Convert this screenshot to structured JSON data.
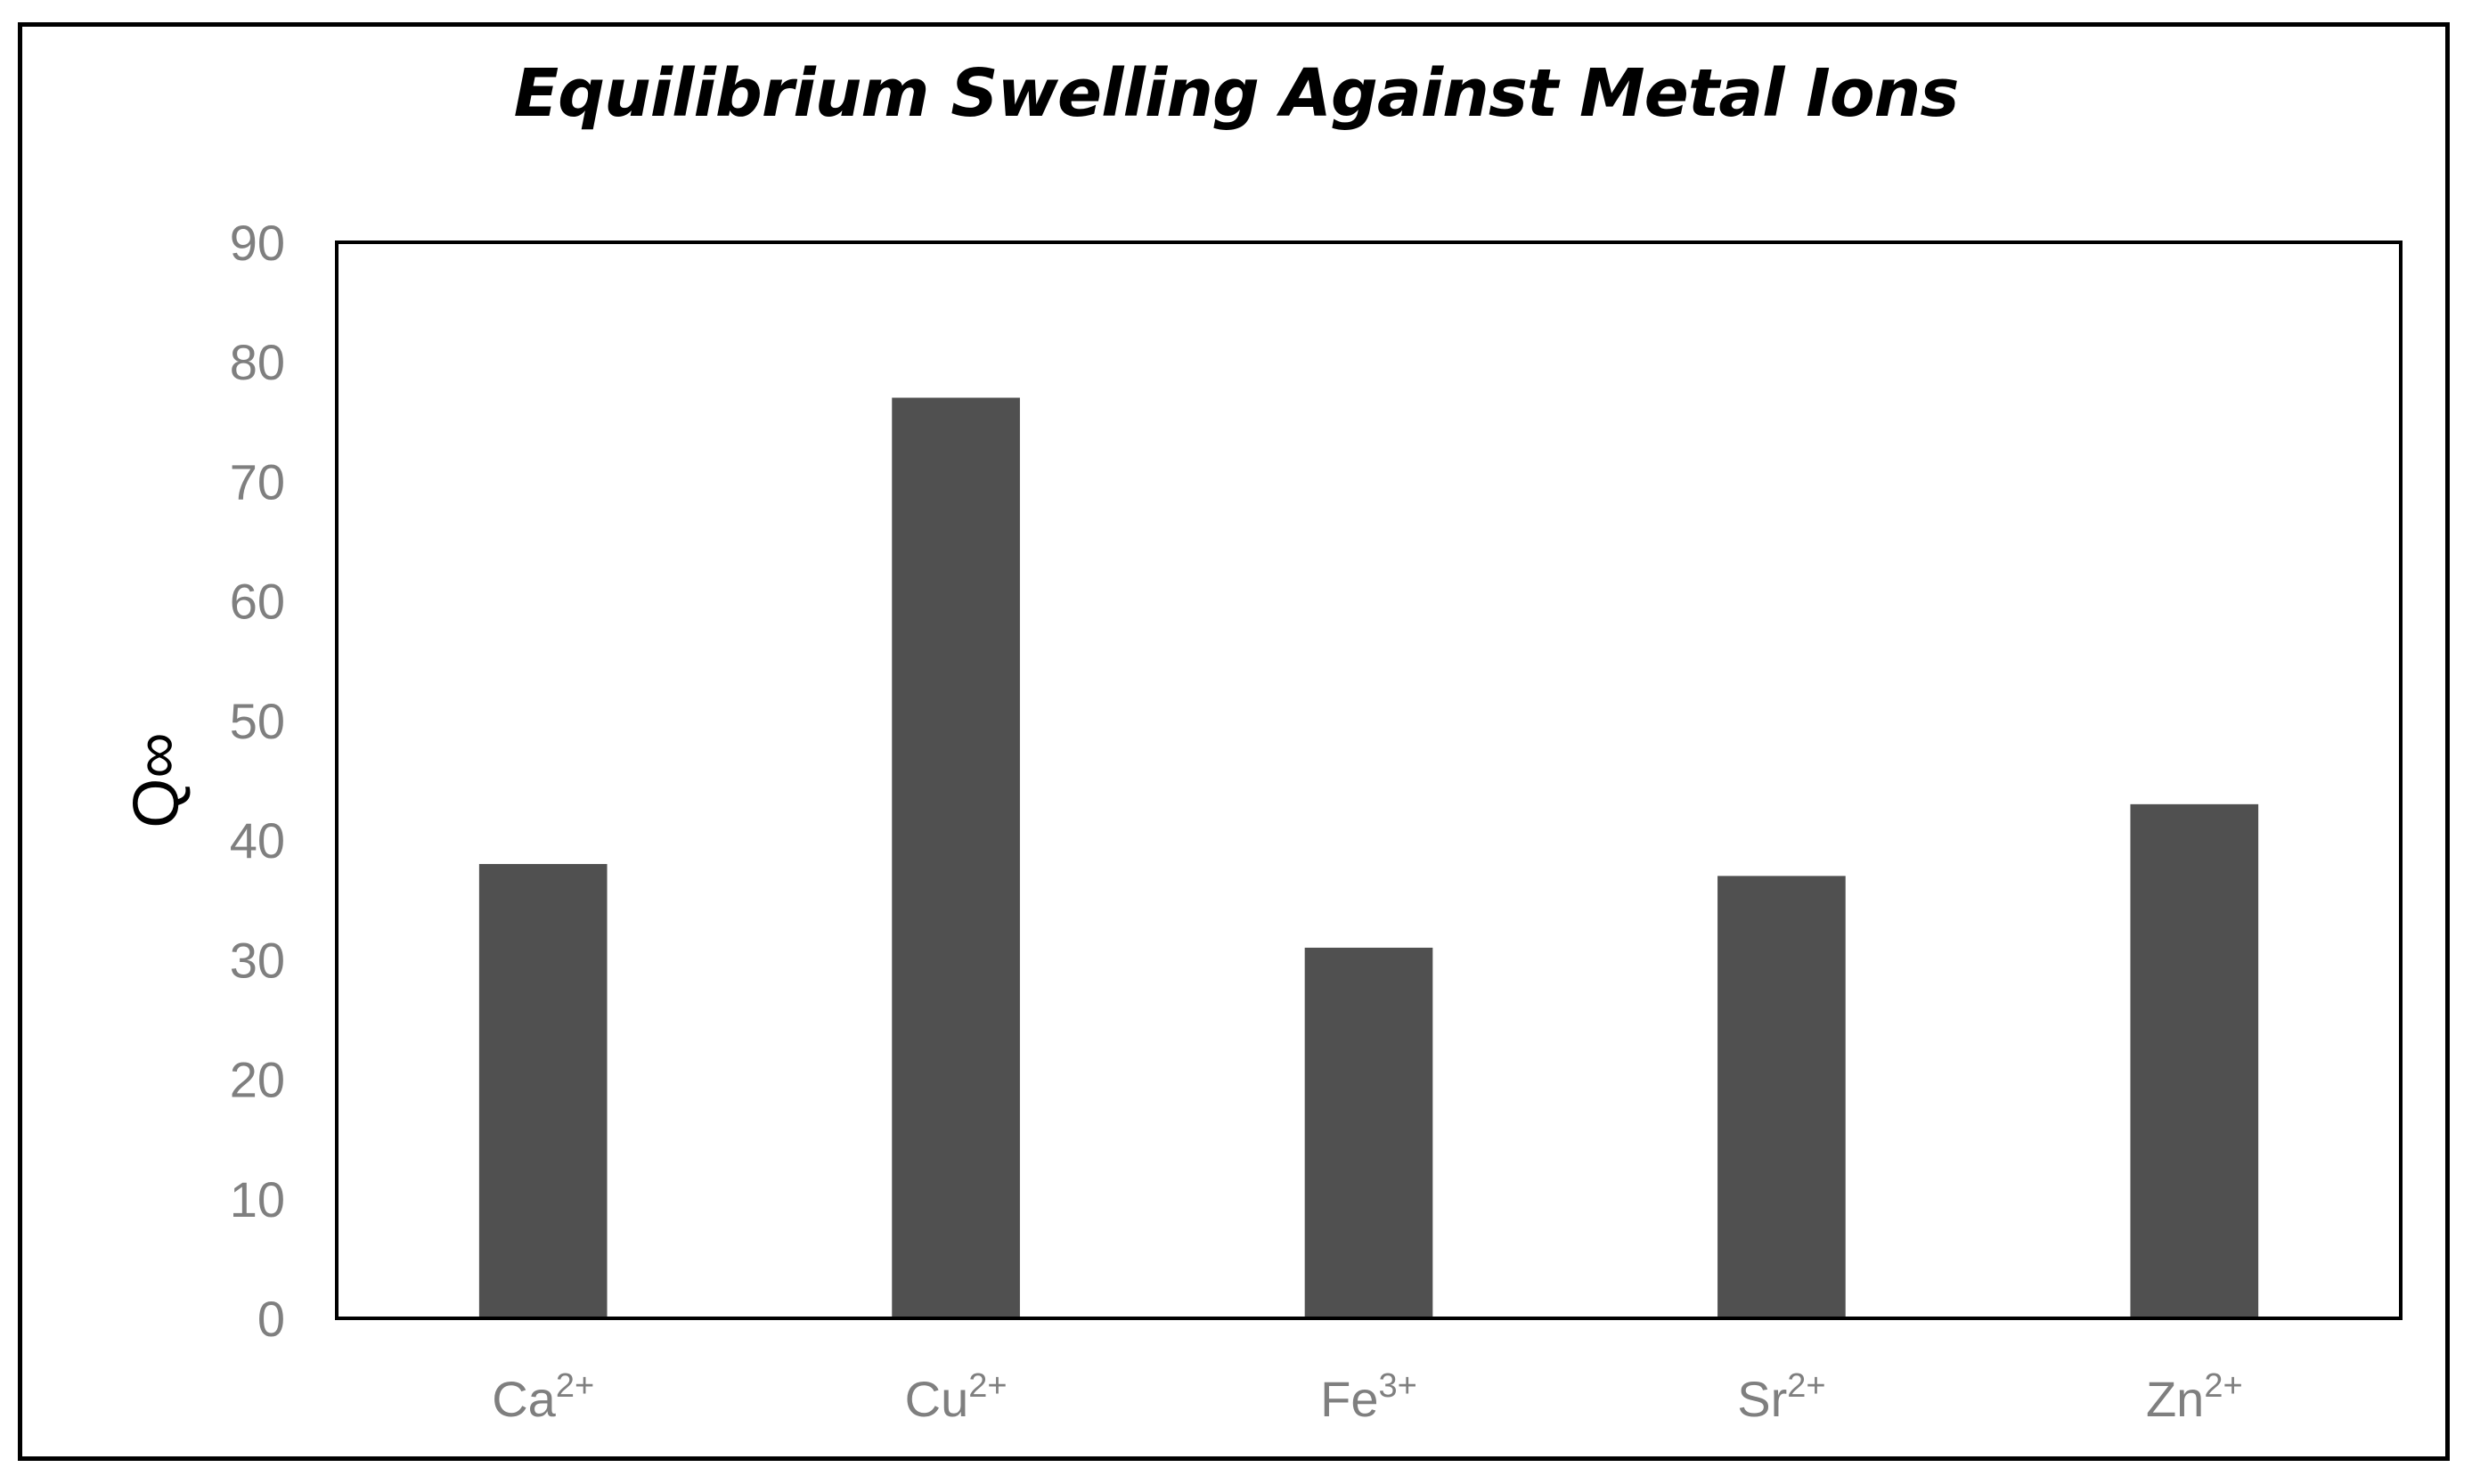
{
  "chart_data": {
    "type": "bar",
    "title": "Equilibrium Swelling Against Metal Ions",
    "xlabel": "",
    "ylabel": "Q∞",
    "categories": [
      {
        "base": "Ca",
        "sup": "2+"
      },
      {
        "base": "Cu",
        "sup": "2+"
      },
      {
        "base": "Fe",
        "sup": "3+"
      },
      {
        "base": "Sr",
        "sup": "2+"
      },
      {
        "base": "Zn",
        "sup": "2+"
      }
    ],
    "values": [
      38,
      77,
      31,
      37,
      43
    ],
    "ylim": [
      0,
      90
    ],
    "yticks": [
      0,
      10,
      20,
      30,
      40,
      50,
      60,
      70,
      80,
      90
    ],
    "bar_color": "#505050",
    "grid": false,
    "legend": "none"
  }
}
